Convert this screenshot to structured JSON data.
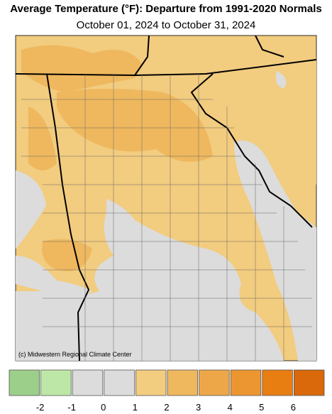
{
  "title": "Average Temperature (°F): Departure from 1991-2020 Normals",
  "subtitle": "October 01, 2024 to October 31, 2024",
  "credit": "(c) Midwestern Regional Climate Center",
  "legend": {
    "boundaries": [
      -2,
      -1,
      0,
      1,
      2,
      3,
      4,
      5,
      6
    ],
    "colors": [
      "#9ccf8a",
      "#bde7a6",
      "#dcdcdc",
      "#dcdcdc",
      "#f2cc7f",
      "#efb85e",
      "#eda748",
      "#ec9632",
      "#e87e12",
      "#d9690a"
    ]
  }
}
